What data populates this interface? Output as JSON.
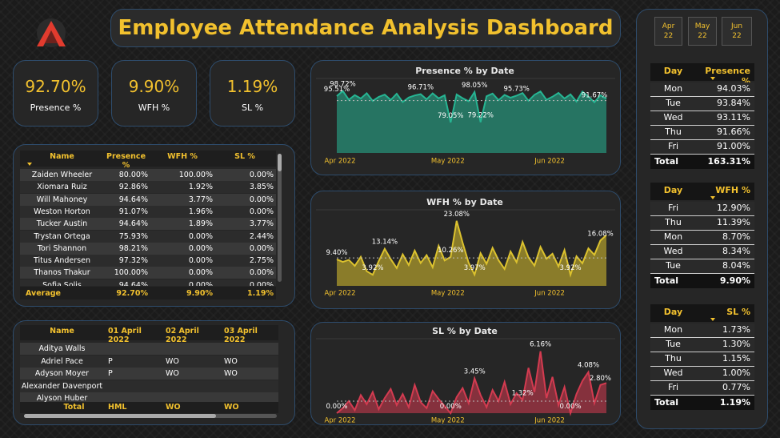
{
  "header": {
    "title": "Employee Attendance Analysis Dashboard"
  },
  "month_slicer": [
    {
      "month": "Apr",
      "year": "22"
    },
    {
      "month": "May",
      "year": "22"
    },
    {
      "month": "Jun",
      "year": "22"
    }
  ],
  "kpis": [
    {
      "value": "92.70%",
      "label": "Presence %"
    },
    {
      "value": "9.90%",
      "label": "WFH %"
    },
    {
      "value": "1.19%",
      "label": "SL %"
    }
  ],
  "employee_table": {
    "columns": [
      "Name",
      "Presence %",
      "WFH %",
      "SL %"
    ],
    "rows": [
      [
        "Zaiden Wheeler",
        "80.00%",
        "100.00%",
        "0.00%"
      ],
      [
        "Xiomara Ruiz",
        "92.86%",
        "1.92%",
        "3.85%"
      ],
      [
        "Will Mahoney",
        "94.64%",
        "3.77%",
        "0.00%"
      ],
      [
        "Weston Horton",
        "91.07%",
        "1.96%",
        "0.00%"
      ],
      [
        "Tucker Austin",
        "94.64%",
        "1.89%",
        "3.77%"
      ],
      [
        "Trystan Ortega",
        "75.93%",
        "0.00%",
        "2.44%"
      ],
      [
        "Tori Shannon",
        "98.21%",
        "0.00%",
        "0.00%"
      ],
      [
        "Titus Andersen",
        "97.32%",
        "0.00%",
        "2.75%"
      ],
      [
        "Thanos Thakur",
        "100.00%",
        "0.00%",
        "0.00%"
      ],
      [
        "Sofia Solis",
        "94.64%",
        "0.00%",
        "0.00%"
      ]
    ],
    "footer": [
      "Average",
      "92.70%",
      "9.90%",
      "1.19%"
    ]
  },
  "daily_table": {
    "columns": [
      "Name",
      "01 April 2022",
      "02 April 2022",
      "03 April 2022"
    ],
    "rows": [
      [
        "Aditya Walls",
        null,
        null,
        null
      ],
      [
        "Adriel Pace",
        "P",
        "WO",
        "WO"
      ],
      [
        "Adyson Moyer",
        "P",
        "WO",
        "WO"
      ],
      [
        "Alexander Davenport",
        null,
        null,
        null
      ],
      [
        "Alyson Huber",
        null,
        null,
        null
      ]
    ],
    "footer": [
      "Total",
      "HML",
      "WO",
      "WO"
    ]
  },
  "day_tables": [
    {
      "columns": [
        "Day",
        "Presence %"
      ],
      "rows": [
        [
          "Mon",
          "94.03%"
        ],
        [
          "Tue",
          "93.84%"
        ],
        [
          "Wed",
          "93.11%"
        ],
        [
          "Thu",
          "91.66%"
        ],
        [
          "Fri",
          "91.00%"
        ]
      ],
      "footer": [
        "Total",
        "163.31%"
      ]
    },
    {
      "columns": [
        "Day",
        "WFH %"
      ],
      "rows": [
        [
          "Fri",
          "12.90%"
        ],
        [
          "Thu",
          "11.39%"
        ],
        [
          "Mon",
          "8.70%"
        ],
        [
          "Wed",
          "8.34%"
        ],
        [
          "Tue",
          "8.04%"
        ]
      ],
      "footer": [
        "Total",
        "9.90%"
      ]
    },
    {
      "columns": [
        "Day",
        "SL %"
      ],
      "rows": [
        [
          "Mon",
          "1.73%"
        ],
        [
          "Tue",
          "1.30%"
        ],
        [
          "Thu",
          "1.15%"
        ],
        [
          "Wed",
          "1.00%"
        ],
        [
          "Fri",
          "0.77%"
        ]
      ],
      "footer": [
        "Total",
        "1.19%"
      ]
    }
  ],
  "chart_data": [
    {
      "type": "area",
      "title": "Presence % by Date",
      "color": "#26b593",
      "ylim": [
        60,
        100
      ],
      "reference_line": 92.7,
      "categories": [
        "Apr 2022",
        null,
        null,
        null,
        null,
        null,
        null,
        null,
        null,
        null,
        null,
        null,
        null,
        null,
        null,
        null,
        null,
        null,
        "May 2022",
        null,
        null,
        null,
        null,
        null,
        null,
        null,
        null,
        null,
        null,
        null,
        null,
        null,
        null,
        null,
        null,
        "Jun 2022",
        null,
        null,
        null,
        null,
        null,
        null,
        null,
        null,
        null,
        null
      ],
      "values": [
        95.51,
        98.72,
        93.2,
        96.1,
        94.0,
        97.3,
        92.5,
        95.0,
        96.4,
        93.1,
        97.0,
        91.8,
        94.6,
        95.9,
        96.71,
        93.5,
        97.2,
        94.1,
        96.0,
        79.05,
        96.5,
        94.2,
        92.3,
        98.05,
        79.22,
        95.4,
        97.1,
        93.0,
        96.2,
        94.5,
        95.73,
        97.4,
        92.6,
        96.3,
        98.4,
        93.2,
        95.1,
        97.5,
        94.0,
        96.6,
        92.1,
        98.3,
        95.2,
        91.67,
        96.0,
        93.8
      ],
      "value_labels": [
        "95.51%",
        "98.72%",
        null,
        null,
        null,
        null,
        null,
        null,
        null,
        null,
        null,
        null,
        null,
        null,
        "96.71%",
        null,
        null,
        null,
        null,
        "79.05%",
        null,
        null,
        null,
        "98.05%",
        "79.22%",
        null,
        null,
        null,
        null,
        null,
        "95.73%",
        null,
        null,
        null,
        null,
        null,
        null,
        null,
        null,
        null,
        null,
        null,
        null,
        "91.67%",
        null,
        null
      ]
    },
    {
      "type": "area",
      "title": "WFH % by Date",
      "color": "#dcc22e",
      "ylim": [
        0,
        25
      ],
      "reference_line": 9.9,
      "categories": [
        "Apr 2022",
        null,
        null,
        null,
        null,
        null,
        null,
        null,
        null,
        null,
        null,
        null,
        null,
        null,
        null,
        null,
        null,
        null,
        "May 2022",
        null,
        null,
        null,
        null,
        null,
        null,
        null,
        null,
        null,
        null,
        null,
        null,
        null,
        null,
        null,
        null,
        "Jun 2022",
        null,
        null,
        null,
        null,
        null,
        null,
        null,
        null,
        null,
        null
      ],
      "values": [
        9.4,
        8.5,
        9.2,
        7.1,
        10.3,
        5.2,
        3.92,
        8.8,
        13.14,
        9.5,
        6.3,
        11.2,
        7.4,
        12.5,
        8.1,
        10.9,
        6.6,
        14.2,
        9.0,
        10.26,
        23.08,
        15.3,
        8.2,
        3.97,
        11.6,
        7.8,
        13.5,
        9.1,
        6.0,
        12.2,
        8.4,
        15.6,
        10.1,
        7.2,
        13.8,
        9.6,
        11.4,
        6.9,
        12.7,
        3.92,
        10.5,
        8.0,
        13.3,
        11.0,
        16.08,
        18.0
      ],
      "value_labels": [
        "9.40%",
        null,
        null,
        null,
        null,
        null,
        "3.92%",
        null,
        "13.14%",
        null,
        null,
        null,
        null,
        null,
        null,
        null,
        null,
        null,
        null,
        "10.26%",
        "23.08%",
        null,
        null,
        "3.97%",
        null,
        null,
        null,
        null,
        null,
        null,
        null,
        null,
        null,
        null,
        null,
        null,
        null,
        null,
        null,
        "3.92%",
        null,
        null,
        null,
        null,
        "16.08%",
        null
      ]
    },
    {
      "type": "area",
      "title": "SL % by Date",
      "color": "#d33b50",
      "ylim": [
        0,
        7
      ],
      "reference_line": 1.19,
      "categories": [
        "Apr 2022",
        null,
        null,
        null,
        null,
        null,
        null,
        null,
        null,
        null,
        null,
        null,
        null,
        null,
        null,
        null,
        null,
        null,
        "May 2022",
        null,
        null,
        null,
        null,
        null,
        null,
        null,
        null,
        null,
        null,
        null,
        null,
        null,
        null,
        null,
        null,
        "Jun 2022",
        null,
        null,
        null,
        null,
        null,
        null,
        null,
        null,
        null,
        null
      ],
      "values": [
        0,
        0.5,
        1.2,
        0.3,
        1.8,
        0.9,
        2.1,
        0.4,
        1.5,
        2.4,
        0.8,
        1.9,
        0.6,
        2.8,
        1.1,
        0.5,
        2.2,
        1.4,
        0.7,
        0,
        1.6,
        2.5,
        1.0,
        3.45,
        1.8,
        0.6,
        2.3,
        1.2,
        3.1,
        0.9,
        2.0,
        1.32,
        4.5,
        2.1,
        6.16,
        1.5,
        3.6,
        0.8,
        2.6,
        0,
        1.9,
        3.2,
        4.08,
        1.0,
        2.8,
        3.0
      ],
      "value_labels": [
        "0.00%",
        null,
        null,
        null,
        null,
        null,
        null,
        null,
        null,
        null,
        null,
        null,
        null,
        null,
        null,
        null,
        null,
        null,
        null,
        "0.00%",
        null,
        null,
        null,
        "3.45%",
        null,
        null,
        null,
        null,
        null,
        null,
        null,
        "1.32%",
        null,
        null,
        "6.16%",
        null,
        null,
        null,
        null,
        "0.00%",
        null,
        null,
        "4.08%",
        null,
        "2.80%",
        null
      ]
    }
  ]
}
